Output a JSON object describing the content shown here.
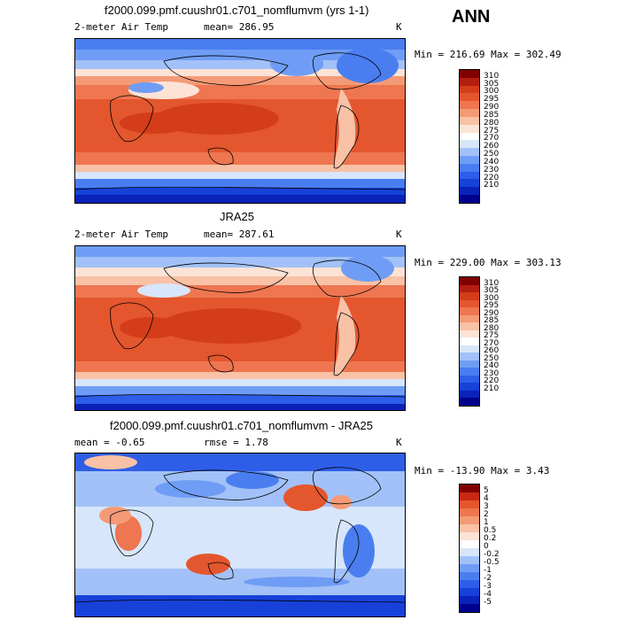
{
  "season": "ANN",
  "colors": {
    "abs": [
      "#00008b",
      "#0a22b8",
      "#1741d8",
      "#2e5ee8",
      "#4a7ef0",
      "#6f9df5",
      "#a2c1f8",
      "#d7e6fb",
      "#ffffff",
      "#fde3d6",
      "#f9c1a6",
      "#f59a77",
      "#ee7650",
      "#e4562e",
      "#d43d1a",
      "#b21e10",
      "#7f0000"
    ],
    "diff": [
      "#00008b",
      "#0a22b8",
      "#1741d8",
      "#2e5ee8",
      "#4a7ef0",
      "#6f9df5",
      "#a2c1f8",
      "#d7e6fb",
      "#ffffff",
      "#fde3d6",
      "#f9c1a6",
      "#f59a77",
      "#ee7650",
      "#e4562e",
      "#c82814",
      "#7f0000"
    ]
  },
  "panels": [
    {
      "title": "f2000.099.pmf.cuushr01.c701_nomflumvm (yrs 1-1)",
      "field": "2-meter Air Temp",
      "mean": "mean= 286.95",
      "unit": "K",
      "minmax": "Min = 216.69 Max = 302.49",
      "levels": [
        "310",
        "305",
        "300",
        "295",
        "290",
        "285",
        "280",
        "275",
        "270",
        "260",
        "250",
        "240",
        "230",
        "220",
        "210"
      ]
    },
    {
      "title": "JRA25",
      "field": "2-meter Air Temp",
      "mean": "mean= 287.61",
      "unit": "K",
      "minmax": "Min = 229.00 Max = 303.13",
      "levels": [
        "310",
        "305",
        "300",
        "295",
        "290",
        "285",
        "280",
        "275",
        "270",
        "260",
        "250",
        "240",
        "230",
        "220",
        "210"
      ]
    },
    {
      "title": "f2000.099.pmf.cuushr01.c701_nomflumvm - JRA25",
      "mean": "mean =   -0.65",
      "rmse": "rmse =    1.78",
      "unit": "K",
      "minmax": "Min = -13.90 Max =    3.43",
      "levels": [
        "5",
        "4",
        "3",
        "2",
        "1",
        "0.5",
        "0.2",
        "0",
        "-0.2",
        "-0.5",
        "-1",
        "-2",
        "-3",
        "-4",
        "-5"
      ]
    }
  ]
}
